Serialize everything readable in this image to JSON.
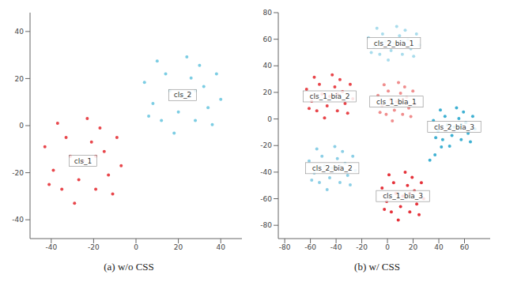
{
  "chart_data": [
    {
      "type": "scatter",
      "title": "(a) w/o CSS",
      "xlim": [
        -50,
        50
      ],
      "xticks": [
        -40,
        -20,
        0,
        20,
        40
      ],
      "ylim": [
        -48,
        48
      ],
      "yticks": [
        -40,
        -20,
        0,
        20,
        40
      ],
      "grid": false,
      "series": [
        {
          "color": "#e8474c",
          "x": [
            -25,
            -15,
            -33,
            -19,
            -39,
            -9,
            -29,
            -23,
            -43,
            -13,
            -35,
            -7,
            -21,
            -31,
            -17,
            -37,
            -11,
            -27,
            -41,
            -19
          ],
          "values": [
            -15,
            -11,
            -5,
            -27,
            -19,
            -5,
            -33,
            3,
            -9,
            -21,
            -27,
            -17,
            -7,
            -13,
            -1,
            1,
            -29,
            -23,
            -25,
            -13
          ]
        },
        {
          "color": "#7ccde3",
          "x": [
            22,
            32,
            14,
            28,
            8,
            38,
            18,
            24,
            4,
            34,
            12,
            40,
            26,
            16,
            30,
            10,
            36,
            20,
            6,
            28
          ],
          "values": [
            13,
            16.6,
            22,
            2.2,
            9.4,
            22,
            -3.2,
            29.2,
            18.4,
            7.6,
            2.2,
            11.2,
            20.2,
            14.8,
            25.6,
            27.4,
            0.4,
            5.8,
            4,
            14.8
          ]
        }
      ],
      "annotations": [
        {
          "text": "cls_1",
          "x": -25,
          "y": -15
        },
        {
          "text": "cls_2",
          "x": 22,
          "y": 13
        }
      ]
    },
    {
      "type": "scatter",
      "title": "(b) w/ CSS",
      "xlim": [
        -85,
        80
      ],
      "xticks": [
        -80,
        -60,
        -40,
        -20,
        0,
        20,
        40,
        60
      ],
      "ylim": [
        -90,
        80
      ],
      "yticks": [
        -80,
        -60,
        -40,
        -20,
        0,
        20,
        40,
        60,
        80
      ],
      "grid": false,
      "series": [
        {
          "color": "#a9dcec",
          "x": [
            5,
            16,
            -3.8,
            11.6,
            -10.4,
            22.6,
            0.6,
            7.2,
            -14.8,
            18.2,
            -6,
            24.8,
            9.4,
            -1.6,
            13.8,
            -8.2,
            20.4,
            2.8,
            -12.6,
            11.6
          ],
          "values": [
            57,
            59.8,
            64,
            48.6,
            54.2,
            64,
            44.4,
            69.6,
            61.2,
            52.8,
            48.6,
            55.6,
            62.6,
            58.4,
            66.8,
            68.2,
            47.2,
            51.4,
            50,
            58.4
          ]
        },
        {
          "color": "#e8454a",
          "x": [
            -45,
            -35,
            -53,
            -39,
            -59,
            -29,
            -49,
            -43,
            -63,
            -33,
            -55,
            -27,
            -41,
            -51,
            -37,
            -57,
            -31,
            -47,
            -61,
            -39
          ],
          "values": [
            17,
            20.6,
            26,
            6.2,
            13.4,
            26,
            0.8,
            33.2,
            22.4,
            11.6,
            6.2,
            15.2,
            24.2,
            18.8,
            29.6,
            31.4,
            4.4,
            9.8,
            8,
            18.8
          ]
        },
        {
          "color": "#f08d8d",
          "x": [
            7,
            15,
            0.6,
            11.8,
            -4.2,
            19.8,
            3.8,
            8.6,
            -7.4,
            16.6,
            -1,
            21.4,
            10.2,
            2.2,
            13.4,
            -2.6,
            18.2,
            5.4,
            -5.8,
            11.8
          ],
          "values": [
            13,
            16.2,
            21,
            3.4,
            9.8,
            21,
            -1.4,
            27.4,
            17.8,
            8.2,
            3.4,
            11.4,
            19.4,
            14.6,
            24.2,
            25.8,
            1.8,
            6.6,
            5,
            14.6
          ]
        },
        {
          "color": "#3eb0d2",
          "x": [
            52,
            61,
            44.8,
            57.4,
            39.4,
            66.4,
            48.4,
            53.8,
            35.8,
            62.8,
            43,
            68.2,
            55.6,
            46.6,
            59.2,
            41.2,
            64.6,
            50.2,
            37.6,
            57.4,
            42,
            37,
            33
          ],
          "values": [
            -6,
            -2.8,
            2,
            -15.6,
            -9.2,
            2,
            -20.4,
            8.4,
            -1.2,
            -10.8,
            -15.6,
            -7.6,
            0.4,
            -4.4,
            5.2,
            6.8,
            -17.2,
            -12.4,
            -14,
            -4.4,
            -21,
            -27,
            -31
          ]
        },
        {
          "color": "#8ccfe6",
          "x": [
            -43,
            -33,
            -51,
            -37,
            -57,
            -27,
            -47,
            -41,
            -61,
            -31,
            -53,
            -25,
            -39,
            -49,
            -35,
            -55,
            -29,
            -45,
            -59,
            -37
          ],
          "values": [
            -37,
            -33.4,
            -28,
            -47.8,
            -40.6,
            -28,
            -53.2,
            -20.8,
            -31.6,
            -42.4,
            -47.8,
            -38.8,
            -29.8,
            -35.2,
            -24.4,
            -22.6,
            -49.6,
            -44.2,
            -46,
            -35.2
          ]
        },
        {
          "color": "#e5323a",
          "x": [
            12,
            21,
            4.8,
            17.4,
            -0.6,
            26.4,
            8.4,
            13.8,
            -4.2,
            22.8,
            3,
            28.2,
            15.6,
            6.6,
            19.2,
            1.2,
            24.6,
            10.2,
            -2.4,
            17.4
          ],
          "values": [
            -58,
            -54,
            -48,
            -70,
            -62,
            -48,
            -76,
            -40,
            -52,
            -64,
            -70,
            -60,
            -50,
            -56,
            -44,
            -42,
            -72,
            -66,
            -68,
            -56
          ]
        }
      ],
      "annotations": [
        {
          "text": "cls_2_bia_1",
          "x": 5,
          "y": 57
        },
        {
          "text": "cls_1_bia_2",
          "x": -45,
          "y": 17
        },
        {
          "text": "cls_1_bia_1",
          "x": 7,
          "y": 13
        },
        {
          "text": "cls_2_bia_3",
          "x": 52,
          "y": -6
        },
        {
          "text": "cls_2_bia_2",
          "x": -43,
          "y": -37
        },
        {
          "text": "cls_1_bia_3",
          "x": 12,
          "y": -58
        }
      ]
    }
  ]
}
